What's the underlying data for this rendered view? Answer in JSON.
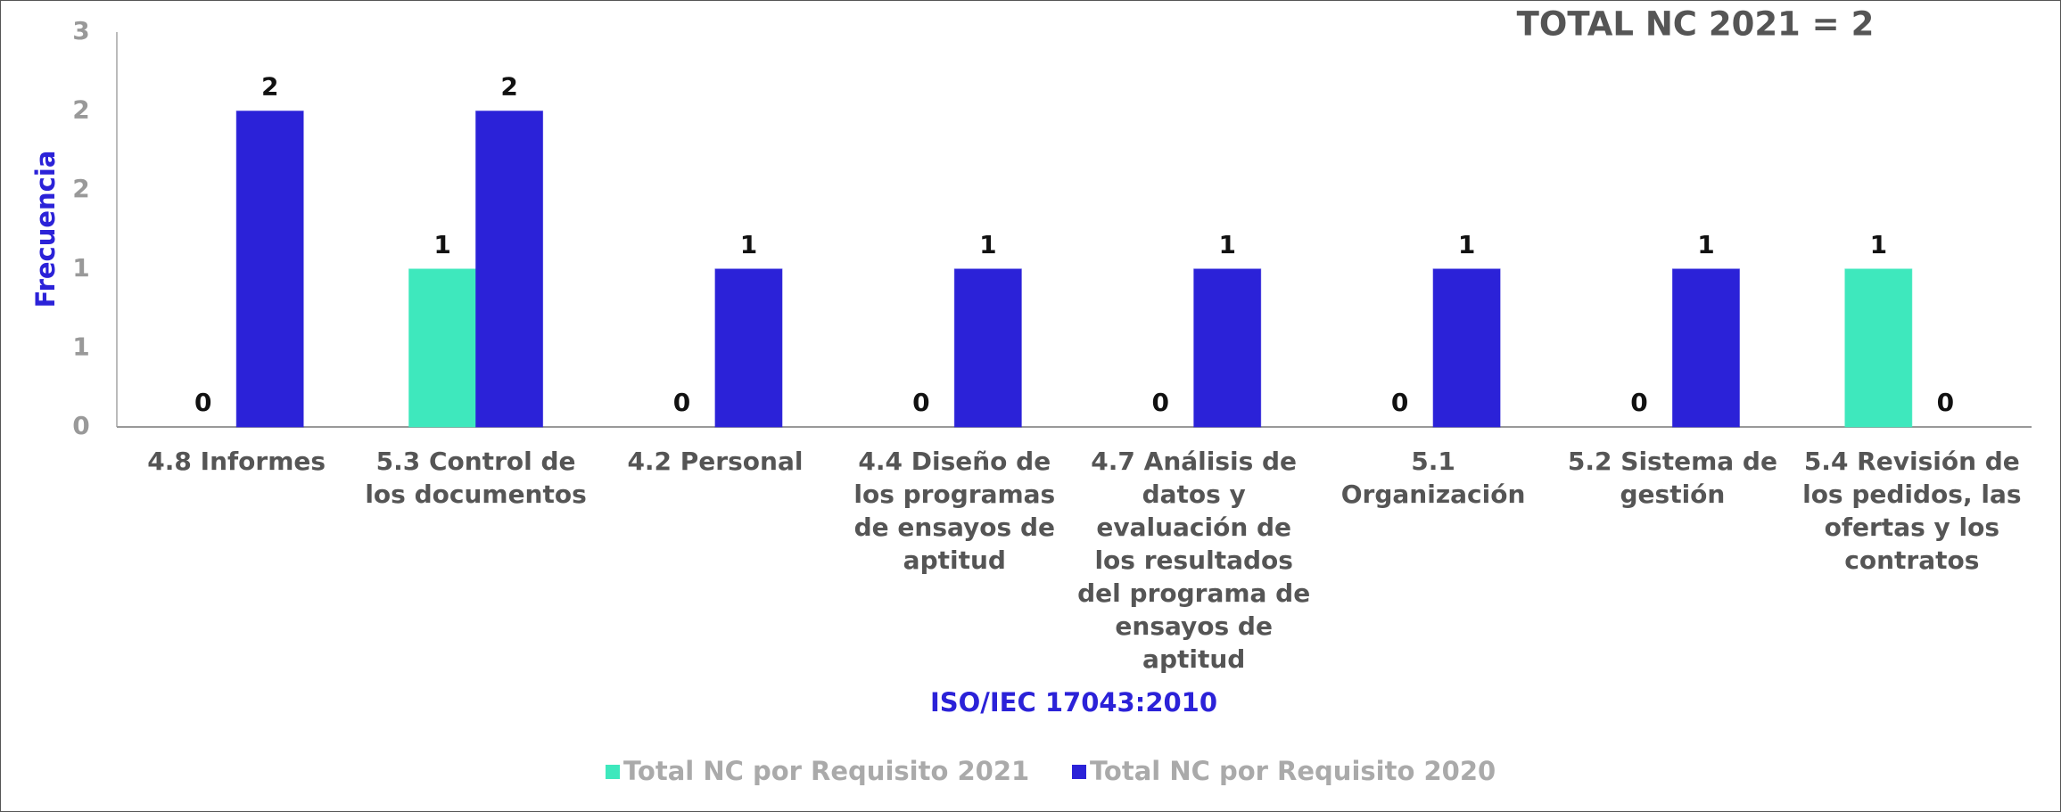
{
  "chart_data": {
    "type": "bar",
    "title": "TOTAL NC 2021 = 2",
    "y_label": "Frecuencia",
    "x_label": "ISO/IEC 17043:2010",
    "categories": [
      "4.8 Informes",
      "5.3 Control de los documentos",
      "4.2 Personal",
      "4.4 Diseño de los programas de ensayos de aptitud",
      "4.7 Análisis de datos y evaluación de los resultados del programa de ensayos de aptitud",
      "5.1 Organización",
      "5.2 Sistema de gestión",
      "5.4 Revisión de los pedidos, las ofertas y los contratos"
    ],
    "series": [
      {
        "name": "Total NC por Requisito 2021",
        "color": "#3ee8bd",
        "values": [
          0,
          1,
          0,
          0,
          0,
          0,
          0,
          1
        ]
      },
      {
        "name": "Total NC por Requisito 2020",
        "color": "#2b22d8",
        "values": [
          2,
          2,
          1,
          1,
          1,
          1,
          1,
          0
        ]
      }
    ],
    "ylim": [
      0,
      2.5
    ],
    "yticks": [
      0,
      {
        "value": 0.5,
        "label": "1"
      },
      1,
      {
        "value": 1.5,
        "label": "2"
      },
      2,
      {
        "value": 2.5,
        "label": "3"
      }
    ],
    "legend": "bottom"
  }
}
